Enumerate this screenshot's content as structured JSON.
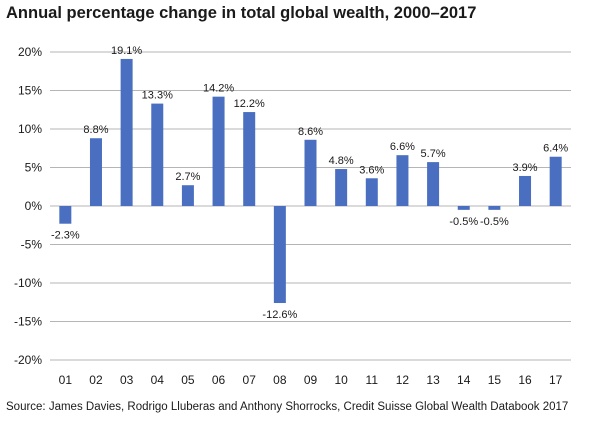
{
  "chart_data": {
    "type": "bar",
    "title": "Annual percentage change in total global wealth, 2000–2017",
    "xlabel": "",
    "ylabel": "",
    "categories": [
      "01",
      "02",
      "03",
      "04",
      "05",
      "06",
      "07",
      "08",
      "09",
      "10",
      "11",
      "12",
      "13",
      "14",
      "15",
      "16",
      "17"
    ],
    "values": [
      -2.3,
      8.8,
      19.1,
      13.3,
      2.7,
      14.2,
      12.2,
      -12.6,
      8.6,
      4.8,
      3.6,
      6.6,
      5.7,
      -0.5,
      -0.5,
      3.9,
      6.4
    ],
    "data_labels": [
      "-2.3%",
      "8.8%",
      "19.1%",
      "13.3%",
      "2.7%",
      "14.2%",
      "12.2%",
      "-12.6%",
      "8.6%",
      "4.8%",
      "3.6%",
      "6.6%",
      "5.7%",
      "-0.5%",
      "-0.5%",
      "3.9%",
      "6.4%"
    ],
    "labeled": [
      true,
      true,
      true,
      true,
      true,
      true,
      true,
      true,
      true,
      true,
      true,
      true,
      true,
      true,
      true,
      true,
      true
    ],
    "ylim": [
      -20,
      20
    ],
    "yticks": [
      20,
      15,
      10,
      5,
      0,
      -5,
      -10,
      -15,
      -20
    ],
    "ytick_labels": [
      "20%",
      "15%",
      "10%",
      "5%",
      "0%",
      "-5%",
      "-10%",
      "-15%",
      "-20%"
    ],
    "grid": true,
    "bar_color": "#4a6fc1",
    "grid_color": "#b5b5b5"
  },
  "source": "Source: James Davies, Rodrigo Lluberas and Anthony Shorrocks, Credit Suisse Global Wealth Databook 2017"
}
